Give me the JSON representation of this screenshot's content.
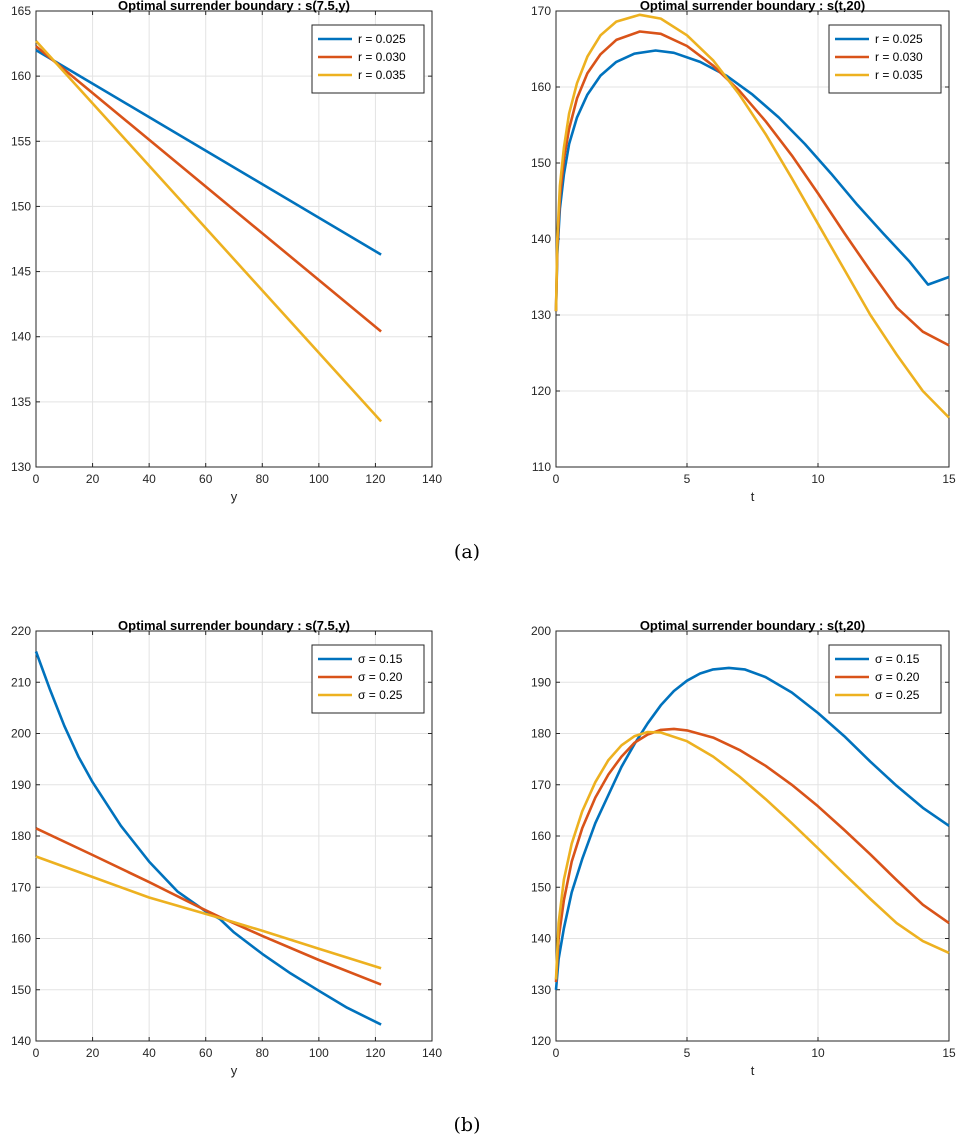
{
  "chart_data": [
    {
      "id": "a-left",
      "type": "line",
      "title": "Optimal surrender boundary : s(7.5,y)",
      "xlabel": "y",
      "ylabel": "",
      "xlim": [
        0,
        140
      ],
      "ylim": [
        130,
        165
      ],
      "xticks": [
        0,
        20,
        40,
        60,
        80,
        100,
        120,
        140
      ],
      "yticks": [
        130,
        135,
        140,
        145,
        150,
        155,
        160,
        165
      ],
      "grid": true,
      "legend": "top-right",
      "series": [
        {
          "name": "r = 0.025",
          "color": "#0072BD",
          "points": [
            [
              0,
              162.0
            ],
            [
              122,
              146.3
            ]
          ]
        },
        {
          "name": "r = 0.030",
          "color": "#D95319",
          "points": [
            [
              0,
              162.3
            ],
            [
              122,
              140.4
            ]
          ]
        },
        {
          "name": "r = 0.035",
          "color": "#EDB120",
          "points": [
            [
              0,
              162.7
            ],
            [
              122,
              133.5
            ]
          ]
        }
      ]
    },
    {
      "id": "a-right",
      "type": "line",
      "title": "Optimal surrender boundary : s(t,20)",
      "xlabel": "t",
      "ylabel": "",
      "xlim": [
        0,
        15
      ],
      "ylim": [
        110,
        170
      ],
      "xticks": [
        0,
        5,
        10,
        15
      ],
      "yticks": [
        110,
        120,
        130,
        140,
        150,
        160,
        170
      ],
      "grid": true,
      "legend": "top-right",
      "series": [
        {
          "name": "r = 0.025",
          "color": "#0072BD",
          "points": [
            [
              0,
              130.5
            ],
            [
              0.05,
              138.0
            ],
            [
              0.15,
              144.0
            ],
            [
              0.3,
              148.5
            ],
            [
              0.5,
              152.5
            ],
            [
              0.8,
              156.0
            ],
            [
              1.2,
              159.0
            ],
            [
              1.7,
              161.5
            ],
            [
              2.3,
              163.3
            ],
            [
              3.0,
              164.4
            ],
            [
              3.8,
              164.8
            ],
            [
              4.5,
              164.5
            ],
            [
              5.5,
              163.3
            ],
            [
              6.5,
              161.5
            ],
            [
              7.5,
              159.0
            ],
            [
              8.5,
              156.0
            ],
            [
              9.5,
              152.5
            ],
            [
              10.5,
              148.6
            ],
            [
              11.5,
              144.5
            ],
            [
              12.5,
              140.7
            ],
            [
              13.5,
              137.0
            ],
            [
              14.2,
              134.0
            ],
            [
              15,
              135.0
            ]
          ]
        },
        {
          "name": "r = 0.030",
          "color": "#D95319",
          "points": [
            [
              0,
              130.5
            ],
            [
              0.05,
              139.0
            ],
            [
              0.15,
              145.5
            ],
            [
              0.3,
              150.5
            ],
            [
              0.5,
              154.5
            ],
            [
              0.8,
              158.5
            ],
            [
              1.2,
              161.8
            ],
            [
              1.7,
              164.3
            ],
            [
              2.3,
              166.2
            ],
            [
              3.2,
              167.3
            ],
            [
              4.0,
              167.0
            ],
            [
              5.0,
              165.4
            ],
            [
              6.0,
              162.8
            ],
            [
              7.0,
              159.5
            ],
            [
              8.0,
              155.5
            ],
            [
              9.0,
              151.0
            ],
            [
              10.0,
              146.0
            ],
            [
              11.0,
              140.8
            ],
            [
              12.0,
              135.8
            ],
            [
              13.0,
              131.0
            ],
            [
              14.0,
              127.8
            ],
            [
              15,
              126.0
            ]
          ]
        },
        {
          "name": "r = 0.035",
          "color": "#EDB120",
          "points": [
            [
              0,
              130.5
            ],
            [
              0.05,
              140.0
            ],
            [
              0.15,
              147.0
            ],
            [
              0.3,
              152.0
            ],
            [
              0.5,
              156.5
            ],
            [
              0.8,
              160.5
            ],
            [
              1.2,
              164.0
            ],
            [
              1.7,
              166.8
            ],
            [
              2.3,
              168.6
            ],
            [
              3.2,
              169.5
            ],
            [
              4.0,
              169.0
            ],
            [
              5.0,
              166.8
            ],
            [
              6.0,
              163.5
            ],
            [
              7.0,
              159.0
            ],
            [
              8.0,
              153.8
            ],
            [
              9.0,
              148.0
            ],
            [
              10.0,
              142.0
            ],
            [
              11.0,
              136.0
            ],
            [
              12.0,
              130.0
            ],
            [
              13.0,
              124.8
            ],
            [
              14.0,
              120.0
            ],
            [
              15,
              116.5
            ]
          ]
        }
      ]
    },
    {
      "id": "b-left",
      "type": "line",
      "title": "Optimal surrender boundary : s(7.5,y)",
      "xlabel": "y",
      "ylabel": "",
      "xlim": [
        0,
        140
      ],
      "ylim": [
        140,
        220
      ],
      "xticks": [
        0,
        20,
        40,
        60,
        80,
        100,
        120,
        140
      ],
      "yticks": [
        140,
        150,
        160,
        170,
        180,
        190,
        200,
        210,
        220
      ],
      "grid": true,
      "legend": "top-right",
      "series": [
        {
          "name": "σ = 0.15",
          "color": "#0072BD",
          "points": [
            [
              0,
              216.0
            ],
            [
              5,
              208.5
            ],
            [
              10,
              201.5
            ],
            [
              15,
              195.5
            ],
            [
              20,
              190.5
            ],
            [
              30,
              182.0
            ],
            [
              40,
              175.0
            ],
            [
              50,
              169.2
            ],
            [
              60,
              165.3
            ],
            [
              65,
              163.8
            ],
            [
              70,
              161.2
            ],
            [
              80,
              157.0
            ],
            [
              90,
              153.2
            ],
            [
              100,
              149.8
            ],
            [
              110,
              146.5
            ],
            [
              122,
              143.2
            ]
          ]
        },
        {
          "name": "σ = 0.20",
          "color": "#D95319",
          "points": [
            [
              0,
              181.5
            ],
            [
              20,
              176.3
            ],
            [
              40,
              171.0
            ],
            [
              60,
              165.5
            ],
            [
              65,
              164.2
            ],
            [
              80,
              160.5
            ],
            [
              100,
              155.8
            ],
            [
              122,
              151.0
            ]
          ]
        },
        {
          "name": "σ = 0.25",
          "color": "#EDB120",
          "points": [
            [
              0,
              176.0
            ],
            [
              20,
              172.0
            ],
            [
              40,
              168.0
            ],
            [
              60,
              164.8
            ],
            [
              65,
              164.0
            ],
            [
              80,
              161.5
            ],
            [
              100,
              158.0
            ],
            [
              122,
              154.2
            ]
          ]
        }
      ]
    },
    {
      "id": "b-right",
      "type": "line",
      "title": "Optimal surrender boundary : s(t,20)",
      "xlabel": "t",
      "ylabel": "",
      "xlim": [
        0,
        15
      ],
      "ylim": [
        120,
        200
      ],
      "xticks": [
        0,
        5,
        10,
        15
      ],
      "yticks": [
        120,
        130,
        140,
        150,
        160,
        170,
        180,
        190,
        200
      ],
      "grid": true,
      "legend": "top-right",
      "series": [
        {
          "name": "σ = 0.15",
          "color": "#0072BD",
          "points": [
            [
              0,
              130.0
            ],
            [
              0.1,
              136.0
            ],
            [
              0.3,
              142.0
            ],
            [
              0.6,
              149.0
            ],
            [
              1.0,
              155.5
            ],
            [
              1.5,
              162.5
            ],
            [
              2.0,
              168.0
            ],
            [
              2.5,
              173.5
            ],
            [
              3.0,
              178.0
            ],
            [
              3.5,
              182.0
            ],
            [
              4.0,
              185.5
            ],
            [
              4.5,
              188.3
            ],
            [
              5.0,
              190.3
            ],
            [
              5.5,
              191.7
            ],
            [
              6.0,
              192.5
            ],
            [
              6.6,
              192.8
            ],
            [
              7.2,
              192.5
            ],
            [
              8.0,
              191.0
            ],
            [
              9.0,
              188.0
            ],
            [
              10.0,
              184.0
            ],
            [
              11.0,
              179.5
            ],
            [
              12.0,
              174.5
            ],
            [
              13.0,
              169.8
            ],
            [
              14.0,
              165.5
            ],
            [
              15,
              162.0
            ]
          ]
        },
        {
          "name": "σ = 0.20",
          "color": "#D95319",
          "points": [
            [
              0,
              131.5
            ],
            [
              0.1,
              140.0
            ],
            [
              0.3,
              147.5
            ],
            [
              0.6,
              155.0
            ],
            [
              1.0,
              161.5
            ],
            [
              1.5,
              167.5
            ],
            [
              2.0,
              172.0
            ],
            [
              2.5,
              175.5
            ],
            [
              3.0,
              178.2
            ],
            [
              3.5,
              179.8
            ],
            [
              4.0,
              180.7
            ],
            [
              4.5,
              180.9
            ],
            [
              5.0,
              180.6
            ],
            [
              6.0,
              179.2
            ],
            [
              7.0,
              176.8
            ],
            [
              8.0,
              173.7
            ],
            [
              9.0,
              170.0
            ],
            [
              10.0,
              165.8
            ],
            [
              11.0,
              161.2
            ],
            [
              12.0,
              156.4
            ],
            [
              13.0,
              151.4
            ],
            [
              14.0,
              146.6
            ],
            [
              15,
              143.0
            ]
          ]
        },
        {
          "name": "σ = 0.25",
          "color": "#EDB120",
          "points": [
            [
              0,
              132.0
            ],
            [
              0.1,
              143.0
            ],
            [
              0.3,
              151.5
            ],
            [
              0.6,
              158.5
            ],
            [
              1.0,
              164.8
            ],
            [
              1.5,
              170.5
            ],
            [
              2.0,
              174.8
            ],
            [
              2.5,
              177.7
            ],
            [
              3.0,
              179.5
            ],
            [
              3.5,
              180.3
            ],
            [
              4.0,
              180.2
            ],
            [
              5.0,
              178.5
            ],
            [
              6.0,
              175.5
            ],
            [
              7.0,
              171.6
            ],
            [
              8.0,
              167.2
            ],
            [
              9.0,
              162.5
            ],
            [
              10.0,
              157.6
            ],
            [
              11.0,
              152.6
            ],
            [
              12.0,
              147.7
            ],
            [
              13.0,
              143.0
            ],
            [
              14.0,
              139.5
            ],
            [
              15,
              137.2
            ]
          ]
        }
      ]
    }
  ],
  "captions": {
    "a": "(a)",
    "b": "(b)"
  }
}
